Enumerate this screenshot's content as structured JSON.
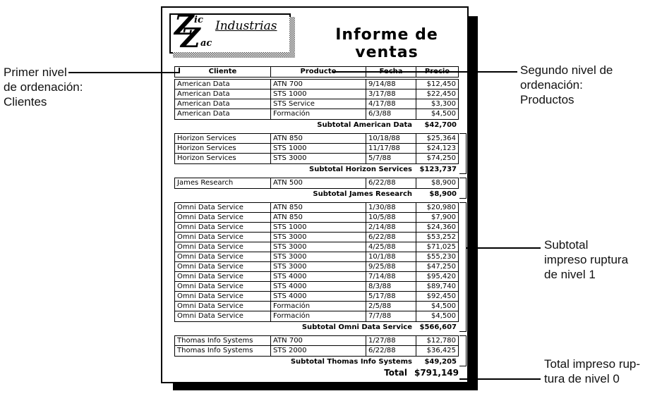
{
  "page": {
    "logo": {
      "z_top": "Z",
      "z_top_small": "ic",
      "z_bottom": "Z",
      "z_bottom_small": "ac",
      "company": "Industrias"
    },
    "title": "Informe de ventas"
  },
  "table": {
    "headers": [
      "Cliente",
      "Producto",
      "Fecha",
      "Precio"
    ],
    "groups": [
      {
        "client": "American Data",
        "bracket": false,
        "rows": [
          [
            "American Data",
            "ATN 700",
            "9/14/88",
            "$12,450"
          ],
          [
            "American Data",
            "STS 1000",
            "3/17/88",
            "$22,450"
          ],
          [
            "American Data",
            "STS Service",
            "4/17/88",
            "$3,300"
          ],
          [
            "American Data",
            "Formación",
            "6/3/88",
            "$4,500"
          ]
        ],
        "subtotal_label": "Subtotal American Data",
        "subtotal_value": "$42,700"
      },
      {
        "client": "Horizon Services",
        "bracket": true,
        "rows": [
          [
            "Horizon Services",
            "ATN 850",
            "10/18/88",
            "$25,364"
          ],
          [
            "Horizon Services",
            "STS 1000",
            "11/17/88",
            "$24,123"
          ],
          [
            "Horizon Services",
            "STS 3000",
            "5/7/88",
            "$74,250"
          ]
        ],
        "subtotal_label": "Subtotal Horizon Services",
        "subtotal_value": "$123,737"
      },
      {
        "client": "James Research",
        "bracket": true,
        "rows": [
          [
            "James Research",
            "ATN 500",
            "6/22/88",
            "$8,900"
          ]
        ],
        "subtotal_label": "Subtotal James Research",
        "subtotal_value": "$8,900"
      },
      {
        "client": "Omni Data Service",
        "bracket": true,
        "rows": [
          [
            "Omni Data Service",
            "ATN 850",
            "1/30/88",
            "$20,980"
          ],
          [
            "Omni Data Service",
            "ATN 850",
            "10/5/88",
            "$7,900"
          ],
          [
            "Omni Data Service",
            "STS 1000",
            "2/14/88",
            "$24,360"
          ],
          [
            "Omni Data Service",
            "STS 3000",
            "6/22/88",
            "$53,252"
          ],
          [
            "Omni Data Service",
            "STS 3000",
            "4/25/88",
            "$71,025"
          ],
          [
            "Omni Data Service",
            "STS 3000",
            "10/1/88",
            "$55,230"
          ],
          [
            "Omni Data Service",
            "STS 3000",
            "9/25/88",
            "$47,250"
          ],
          [
            "Omni Data Service",
            "STS 4000",
            "7/14/88",
            "$95,420"
          ],
          [
            "Omni Data Service",
            "STS 4000",
            "8/3/88",
            "$89,740"
          ],
          [
            "Omni Data Service",
            "STS 4000",
            "5/17/88",
            "$92,450"
          ],
          [
            "Omni Data Service",
            "Formación",
            "2/5/88",
            "$4,500"
          ],
          [
            "Omni Data Service",
            "Formación",
            "7/7/88",
            "$4,500"
          ]
        ],
        "subtotal_label": "Subtotal Omni Data Service",
        "subtotal_value": "$566,607"
      },
      {
        "client": "Thomas Info Systems",
        "bracket": true,
        "rows": [
          [
            "Thomas Info Systems",
            "ATN 700",
            "1/27/88",
            "$12,780"
          ],
          [
            "Thomas Info Systems",
            "STS 2000",
            "6/22/88",
            "$36,425"
          ]
        ],
        "subtotal_label": "Subtotal Thomas Info Systems",
        "subtotal_value": "$49,205"
      }
    ],
    "total_label": "Total",
    "total_value": "$791,149"
  },
  "annotations": {
    "primer": {
      "lines": [
        "Primer nivel",
        "de ordenación:",
        "Clientes"
      ]
    },
    "segundo": {
      "lines": [
        "Segundo nivel de",
        "ordenación:",
        "Productos"
      ]
    },
    "subtotal1": {
      "lines": [
        "Subtotal",
        "impreso ruptura",
        "de nivel 1"
      ]
    },
    "total0": {
      "lines": [
        "Total impreso rup-",
        "tura de nivel 0"
      ]
    }
  },
  "colors": {
    "ink": "#000000",
    "paper": "#ffffff"
  }
}
